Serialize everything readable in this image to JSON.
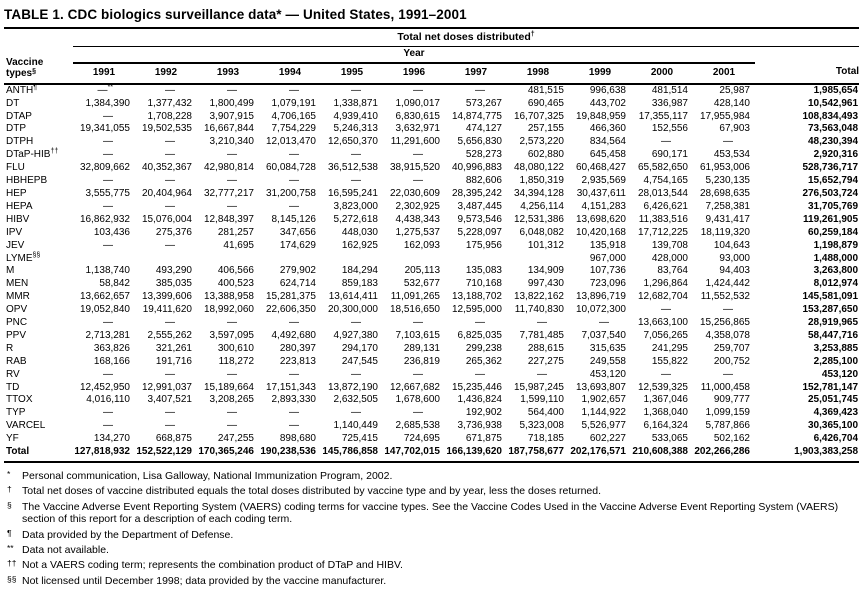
{
  "title": "TABLE 1. CDC biologics surveillance data* — United States, 1991–2001",
  "table": {
    "group_header": {
      "label": "Total net doses distributed",
      "sup": "†"
    },
    "year_header": "Year",
    "row_header": {
      "line1": "Vaccine",
      "line2": "types",
      "sup": "§"
    },
    "year_columns": [
      "1991",
      "1992",
      "1993",
      "1994",
      "1995",
      "1996",
      "1997",
      "1998",
      "1999",
      "2000",
      "2001"
    ],
    "total_column": "Total",
    "rows": [
      {
        "label": "ANTH",
        "sup": "¶",
        "values": [
          "—**",
          "—",
          "—",
          "—",
          "—",
          "—",
          "—",
          "481,515",
          "996,638",
          "481,514",
          "25,987",
          "1,985,654"
        ]
      },
      {
        "label": "DT",
        "sup": "",
        "values": [
          "1,384,390",
          "1,377,432",
          "1,800,499",
          "1,079,191",
          "1,338,871",
          "1,090,017",
          "573,267",
          "690,465",
          "443,702",
          "336,987",
          "428,140",
          "10,542,961"
        ]
      },
      {
        "label": "DTAP",
        "sup": "",
        "values": [
          "—",
          "1,708,228",
          "3,907,915",
          "4,706,165",
          "4,939,410",
          "6,830,615",
          "14,874,775",
          "16,707,325",
          "19,848,959",
          "17,355,117",
          "17,955,984",
          "108,834,493"
        ]
      },
      {
        "label": "DTP",
        "sup": "",
        "values": [
          "19,341,055",
          "19,502,535",
          "16,667,844",
          "7,754,229",
          "5,246,313",
          "3,632,971",
          "474,127",
          "257,155",
          "466,360",
          "152,556",
          "67,903",
          "73,563,048"
        ]
      },
      {
        "label": "DTPH",
        "sup": "",
        "values": [
          "—",
          "—",
          "3,210,340",
          "12,013,470",
          "12,650,370",
          "11,291,600",
          "5,656,830",
          "2,573,220",
          "834,564",
          "—",
          "—",
          "48,230,394"
        ]
      },
      {
        "label": "DTaP-HIB",
        "sup": "††",
        "values": [
          "—",
          "—",
          "—",
          "—",
          "—",
          "—",
          "528,273",
          "602,880",
          "645,458",
          "690,171",
          "453,534",
          "2,920,316"
        ]
      },
      {
        "label": "FLU",
        "sup": "",
        "values": [
          "32,809,662",
          "40,352,367",
          "42,980,814",
          "60,084,728",
          "36,512,538",
          "38,915,520",
          "40,996,883",
          "48,080,122",
          "60,468,427",
          "65,582,650",
          "61,953,006",
          "528,736,717"
        ]
      },
      {
        "label": "HBHEPB",
        "sup": "",
        "values": [
          "—",
          "—",
          "—",
          "—",
          "—",
          "—",
          "882,606",
          "1,850,319",
          "2,935,569",
          "4,754,165",
          "5,230,135",
          "15,652,794"
        ]
      },
      {
        "label": "HEP",
        "sup": "",
        "values": [
          "3,555,775",
          "20,404,964",
          "32,777,217",
          "31,200,758",
          "16,595,241",
          "22,030,609",
          "28,395,242",
          "34,394,128",
          "30,437,611",
          "28,013,544",
          "28,698,635",
          "276,503,724"
        ]
      },
      {
        "label": "HEPA",
        "sup": "",
        "values": [
          "—",
          "—",
          "—",
          "—",
          "3,823,000",
          "2,302,925",
          "3,487,445",
          "4,256,114",
          "4,151,283",
          "6,426,621",
          "7,258,381",
          "31,705,769"
        ]
      },
      {
        "label": "HIBV",
        "sup": "",
        "values": [
          "16,862,932",
          "15,076,004",
          "12,848,397",
          "8,145,126",
          "5,272,618",
          "4,438,343",
          "9,573,546",
          "12,531,386",
          "13,698,620",
          "11,383,516",
          "9,431,417",
          "119,261,905"
        ]
      },
      {
        "label": "IPV",
        "sup": "",
        "values": [
          "103,436",
          "275,376",
          "281,257",
          "347,656",
          "448,030",
          "1,275,537",
          "5,228,097",
          "6,048,082",
          "10,420,168",
          "17,712,225",
          "18,119,320",
          "60,259,184"
        ]
      },
      {
        "label": "JEV",
        "sup": "",
        "values": [
          "—",
          "—",
          "41,695",
          "174,629",
          "162,925",
          "162,093",
          "175,956",
          "101,312",
          "135,918",
          "139,708",
          "104,643",
          "1,198,879"
        ]
      },
      {
        "label": "LYME",
        "sup": "§§",
        "values": [
          "",
          "",
          "",
          "",
          "",
          "",
          "",
          "",
          "967,000",
          "428,000",
          "93,000",
          "1,488,000"
        ]
      },
      {
        "label": "M",
        "sup": "",
        "values": [
          "1,138,740",
          "493,290",
          "406,566",
          "279,902",
          "184,294",
          "205,113",
          "135,083",
          "134,909",
          "107,736",
          "83,764",
          "94,403",
          "3,263,800"
        ]
      },
      {
        "label": "MEN",
        "sup": "",
        "values": [
          "58,842",
          "385,035",
          "400,523",
          "624,714",
          "859,183",
          "532,677",
          "710,168",
          "997,430",
          "723,096",
          "1,296,864",
          "1,424,442",
          "8,012,974"
        ]
      },
      {
        "label": "MMR",
        "sup": "",
        "values": [
          "13,662,657",
          "13,399,606",
          "13,388,958",
          "15,281,375",
          "13,614,411",
          "11,091,265",
          "13,188,702",
          "13,822,162",
          "13,896,719",
          "12,682,704",
          "11,552,532",
          "145,581,091"
        ]
      },
      {
        "label": "OPV",
        "sup": "",
        "values": [
          "19,052,840",
          "19,411,620",
          "18,992,060",
          "22,606,350",
          "20,300,000",
          "18,516,650",
          "12,595,000",
          "11,740,830",
          "10,072,300",
          "—",
          "—",
          "153,287,650"
        ]
      },
      {
        "label": "PNC",
        "sup": "",
        "values": [
          "—",
          "—",
          "—",
          "—",
          "—",
          "—",
          "—",
          "—",
          "—",
          "13,663,100",
          "15,256,865",
          "28,919,965"
        ]
      },
      {
        "label": "PPV",
        "sup": "",
        "values": [
          "2,713,281",
          "2,555,262",
          "3,597,095",
          "4,492,680",
          "4,927,380",
          "7,103,615",
          "6,825,035",
          "7,781,485",
          "7,037,540",
          "7,056,265",
          "4,358,078",
          "58,447,716"
        ]
      },
      {
        "label": "R",
        "sup": "",
        "values": [
          "363,826",
          "321,261",
          "300,610",
          "280,397",
          "294,170",
          "289,131",
          "299,238",
          "288,615",
          "315,635",
          "241,295",
          "259,707",
          "3,253,885"
        ]
      },
      {
        "label": "RAB",
        "sup": "",
        "values": [
          "168,166",
          "191,716",
          "118,272",
          "223,813",
          "247,545",
          "236,819",
          "265,362",
          "227,275",
          "249,558",
          "155,822",
          "200,752",
          "2,285,100"
        ]
      },
      {
        "label": "RV",
        "sup": "",
        "values": [
          "—",
          "—",
          "—",
          "—",
          "—",
          "—",
          "—",
          "—",
          "453,120",
          "—",
          "—",
          "453,120"
        ]
      },
      {
        "label": "TD",
        "sup": "",
        "values": [
          "12,452,950",
          "12,991,037",
          "15,189,664",
          "17,151,343",
          "13,872,190",
          "12,667,682",
          "15,235,446",
          "15,987,245",
          "13,693,807",
          "12,539,325",
          "11,000,458",
          "152,781,147"
        ]
      },
      {
        "label": "TTOX",
        "sup": "",
        "values": [
          "4,016,110",
          "3,407,521",
          "3,208,265",
          "2,893,330",
          "2,632,505",
          "1,678,600",
          "1,436,824",
          "1,599,110",
          "1,902,657",
          "1,367,046",
          "909,777",
          "25,051,745"
        ]
      },
      {
        "label": "TYP",
        "sup": "",
        "values": [
          "—",
          "—",
          "—",
          "—",
          "—",
          "—",
          "192,902",
          "564,400",
          "1,144,922",
          "1,368,040",
          "1,099,159",
          "4,369,423"
        ]
      },
      {
        "label": "VARCEL",
        "sup": "",
        "values": [
          "—",
          "—",
          "—",
          "—",
          "1,140,449",
          "2,685,538",
          "3,736,938",
          "5,323,008",
          "5,526,977",
          "6,164,324",
          "5,787,866",
          "30,365,100"
        ]
      },
      {
        "label": "YF",
        "sup": "",
        "values": [
          "134,270",
          "668,875",
          "247,255",
          "898,680",
          "725,415",
          "724,695",
          "671,875",
          "718,185",
          "602,227",
          "533,065",
          "502,162",
          "6,426,704"
        ]
      }
    ],
    "total_row": {
      "label": "Total",
      "values": [
        "127,818,932",
        "152,522,129",
        "170,365,246",
        "190,238,536",
        "145,786,858",
        "147,702,015",
        "166,139,620",
        "187,758,677",
        "202,176,571",
        "210,608,388",
        "202,266,286",
        "1,903,383,258"
      ]
    }
  },
  "footnotes": [
    {
      "marker": "*",
      "text": "Personal communication, Lisa Galloway, National Immunization Program, 2002."
    },
    {
      "marker": "†",
      "text": "Total net doses of vaccine distributed equals the total doses distributed by vaccine type and by year, less the doses returned."
    },
    {
      "marker": "§",
      "text": "The Vaccine Adverse Event Reporting System (VAERS) coding terms for vaccine types. See the Vaccine Codes Used in the Vaccine Adverse Event Reporting System (VAERS) section of this report for a description of each coding term."
    },
    {
      "marker": "¶",
      "text": "Data provided by the Department of Defense."
    },
    {
      "marker": "**",
      "text": "Data not available."
    },
    {
      "marker": "††",
      "text": "Not a VAERS coding term; represents the combination product of DTaP and HIBV."
    },
    {
      "marker": "§§",
      "text": "Not licensed until December 1998; data provided by the vaccine manufacturer."
    }
  ]
}
